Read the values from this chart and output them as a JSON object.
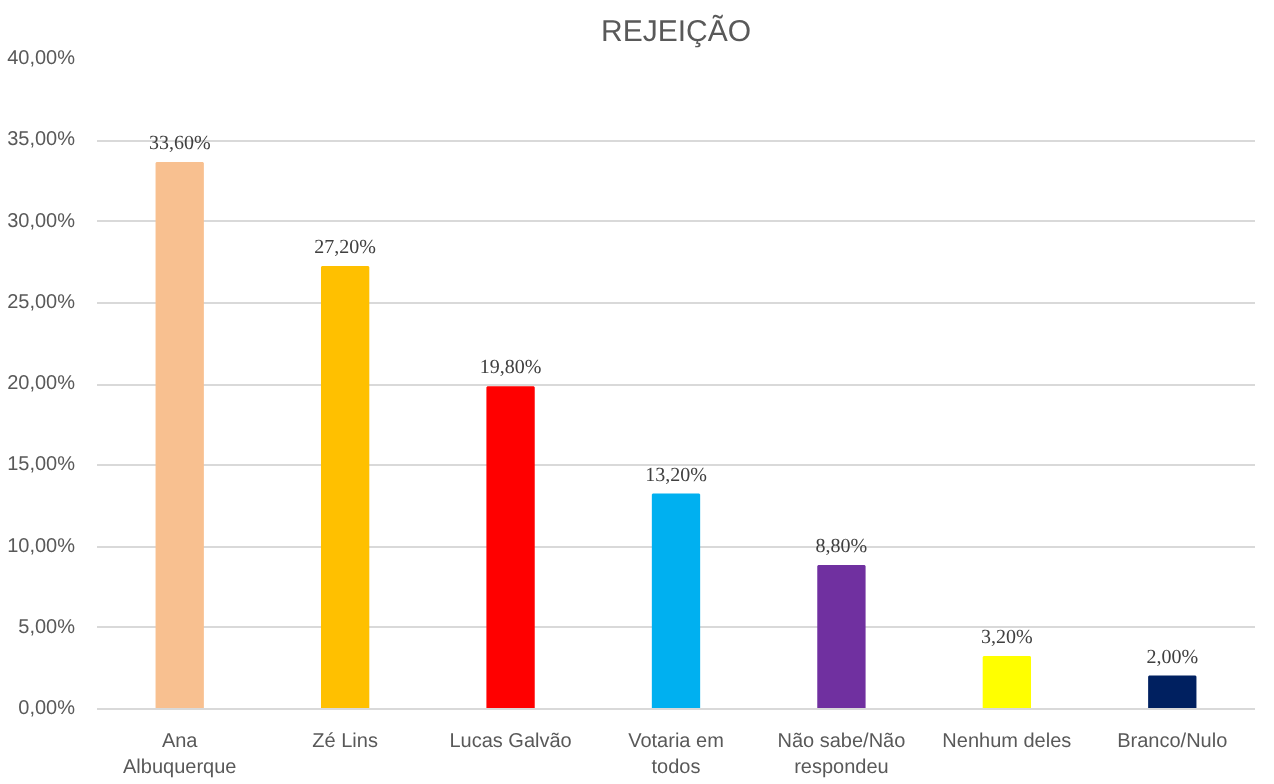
{
  "chart_data": {
    "type": "bar",
    "title": "REJEIÇÃO",
    "categories": [
      "Ana Albuquerque",
      "Zé Lins",
      "Lucas Galvão",
      "Votaria em todos",
      "Não sabe/Não respondeu",
      "Nenhum deles",
      "Branco/Nulo"
    ],
    "values": [
      33.6,
      27.2,
      19.8,
      13.2,
      8.8,
      3.2,
      2.0
    ],
    "colors": [
      "#f8c090",
      "#ffc000",
      "#ff0000",
      "#00b0f0",
      "#7030a0",
      "#ffff00",
      "#002060"
    ],
    "value_labels": [
      "33,60%",
      "27,20%",
      "19,80%",
      "13,20%",
      "8,80%",
      "3,20%",
      "2,00%"
    ],
    "ylim": [
      0,
      40
    ],
    "yticks": [
      {
        "value": 0,
        "label": "0,00%"
      },
      {
        "value": 5,
        "label": "5,00%"
      },
      {
        "value": 10,
        "label": "10,00%"
      },
      {
        "value": 15,
        "label": "15,00%"
      },
      {
        "value": 20,
        "label": "20,00%"
      },
      {
        "value": 25,
        "label": "25,00%"
      },
      {
        "value": 30,
        "label": "30,00%"
      },
      {
        "value": 35,
        "label": "35,00%"
      },
      {
        "value": 40,
        "label": "40,00%"
      }
    ],
    "grid": "y"
  }
}
